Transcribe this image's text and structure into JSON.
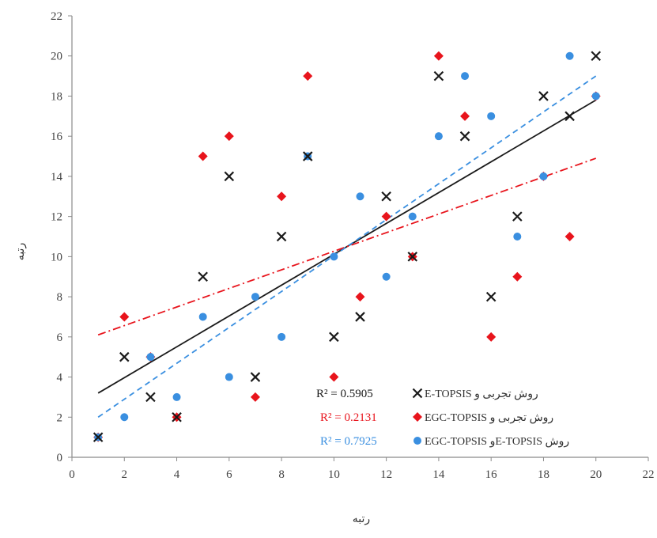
{
  "chart_data": {
    "type": "scatter",
    "xlim": [
      0,
      22
    ],
    "ylim": [
      0,
      22
    ],
    "xticks": [
      0,
      2,
      4,
      6,
      8,
      10,
      12,
      14,
      16,
      18,
      20,
      22
    ],
    "yticks": [
      0,
      2,
      4,
      6,
      8,
      10,
      12,
      14,
      16,
      18,
      20,
      22
    ],
    "xlabel": "رتبه",
    "ylabel": "رتبه",
    "grid": false,
    "legend_position": "bottom-right",
    "series": [
      {
        "name": "روش تجربی و E-TOPSIS",
        "marker": "x",
        "color": "#1a1a1a",
        "r2_label": "R² = 0.5905",
        "trend": "solid",
        "trend_color": "#1a1a1a",
        "trend_points": [
          [
            1,
            3.2
          ],
          [
            20,
            17.8
          ]
        ],
        "points": [
          [
            1,
            1
          ],
          [
            2,
            5
          ],
          [
            3,
            3
          ],
          [
            4,
            2
          ],
          [
            5,
            9
          ],
          [
            6,
            14
          ],
          [
            7,
            4
          ],
          [
            8,
            11
          ],
          [
            9,
            15
          ],
          [
            10,
            6
          ],
          [
            11,
            7
          ],
          [
            12,
            13
          ],
          [
            13,
            10
          ],
          [
            14,
            19
          ],
          [
            15,
            16
          ],
          [
            16,
            8
          ],
          [
            17,
            12
          ],
          [
            18,
            18
          ],
          [
            19,
            17
          ],
          [
            20,
            20
          ]
        ]
      },
      {
        "name": "روش تجربی و EGC-TOPSIS",
        "marker": "diamond",
        "color": "#e8141c",
        "r2_label": "R² = 0.2131",
        "trend": "dashdot",
        "trend_color": "#e8141c",
        "trend_points": [
          [
            1,
            6.1
          ],
          [
            20,
            14.9
          ]
        ],
        "points": [
          [
            1,
            1
          ],
          [
            2,
            7
          ],
          [
            3,
            5
          ],
          [
            4,
            2
          ],
          [
            5,
            15
          ],
          [
            6,
            16
          ],
          [
            7,
            3
          ],
          [
            8,
            13
          ],
          [
            9,
            19
          ],
          [
            10,
            4
          ],
          [
            11,
            8
          ],
          [
            12,
            12
          ],
          [
            13,
            10
          ],
          [
            14,
            20
          ],
          [
            15,
            17
          ],
          [
            16,
            6
          ],
          [
            17,
            9
          ],
          [
            18,
            14
          ],
          [
            19,
            11
          ],
          [
            20,
            18
          ]
        ]
      },
      {
        "name": "روش E-TOPSISو EGC-TOPSIS",
        "marker": "circle",
        "color": "#3a8fe0",
        "r2_label": "R² = 0.7925",
        "trend": "dashed",
        "trend_color": "#3a8fe0",
        "trend_points": [
          [
            1,
            2.0
          ],
          [
            20,
            19.0
          ]
        ],
        "points": [
          [
            1,
            1
          ],
          [
            2,
            2
          ],
          [
            3,
            5
          ],
          [
            4,
            3
          ],
          [
            5,
            7
          ],
          [
            6,
            4
          ],
          [
            7,
            8
          ],
          [
            8,
            6
          ],
          [
            9,
            15
          ],
          [
            10,
            10
          ],
          [
            11,
            13
          ],
          [
            12,
            9
          ],
          [
            13,
            12
          ],
          [
            14,
            16
          ],
          [
            15,
            19
          ],
          [
            16,
            17
          ],
          [
            17,
            11
          ],
          [
            18,
            14
          ],
          [
            19,
            20
          ],
          [
            20,
            18
          ]
        ]
      }
    ]
  }
}
